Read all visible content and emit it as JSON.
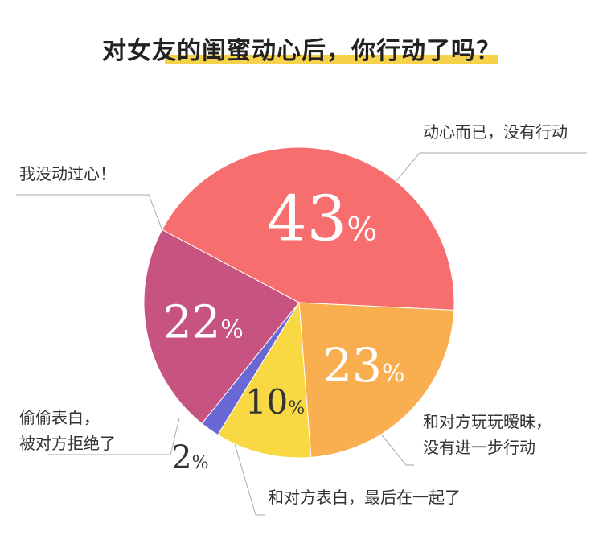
{
  "title": "对女友的闺蜜动心后，你行动了吗？",
  "colors": {
    "title_highlight": "#f5d24a",
    "guide_line": "#aaaaaa"
  },
  "chart_data": {
    "type": "pie",
    "unit": "%",
    "slices": [
      {
        "label": "动心而已，没有行动",
        "value": 43,
        "display": "43",
        "color": "#f66e6e",
        "label_color": "#ffffff"
      },
      {
        "label": "和对方玩玩暧昧，没有进一步行动",
        "value": 23,
        "display": "23",
        "color": "#f9ae50",
        "label_color": "#ffffff"
      },
      {
        "label": "和对方表白，最后在一起了",
        "value": 10,
        "display": "10",
        "color": "#f8d843",
        "label_color": "#333333"
      },
      {
        "label": "偷偷表白，被对方拒绝了",
        "value": 2,
        "display": "2",
        "color": "#6a68d4",
        "label_color": "#333333"
      },
      {
        "label": "我没动过心！",
        "value": 22,
        "display": "22",
        "color": "#c75480",
        "label_color": "#ffffff"
      }
    ]
  },
  "callouts": {
    "moved_only": "动心而已，没有行动",
    "flirt_line1": "和对方玩玩暧昧，",
    "flirt_line2": "没有进一步行动",
    "confessed_together": "和对方表白，最后在一起了",
    "rejected_line1": "偷偷表白，",
    "rejected_line2": "被对方拒绝了",
    "never_moved": "我没动过心！"
  }
}
